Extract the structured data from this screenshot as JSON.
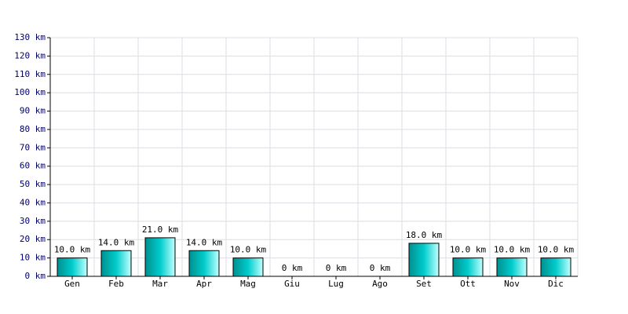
{
  "chart_data": {
    "type": "bar",
    "categories": [
      "Gen",
      "Feb",
      "Mar",
      "Apr",
      "Mag",
      "Giu",
      "Lug",
      "Ago",
      "Set",
      "Ott",
      "Nov",
      "Dic"
    ],
    "values": [
      10,
      14,
      21,
      14,
      10,
      0,
      0,
      0,
      18,
      10,
      10,
      10
    ],
    "value_labels": [
      "10.0 km",
      "14.0 km",
      "21.0 km",
      "14.0 km",
      "10.0 km",
      "0 km",
      "0 km",
      "0 km",
      "18.0 km",
      "10.0 km",
      "10.0 km",
      "10.0 km"
    ],
    "color": "#00cccc",
    "ylim": [
      0,
      130
    ],
    "yticks": [
      {
        "value": 0,
        "label": "0 km"
      },
      {
        "value": 10,
        "label": "10 km"
      },
      {
        "value": 20,
        "label": "20 km"
      },
      {
        "value": 30,
        "label": "30 km"
      },
      {
        "value": 40,
        "label": "40 km"
      },
      {
        "value": 50,
        "label": "50 km"
      },
      {
        "value": 60,
        "label": "60 km"
      },
      {
        "value": 70,
        "label": "70 km"
      },
      {
        "value": 80,
        "label": "80 km"
      },
      {
        "value": 90,
        "label": "90 km"
      },
      {
        "value": 100,
        "label": "100 km"
      },
      {
        "value": 110,
        "label": "110 km"
      },
      {
        "value": 120,
        "label": "120 km"
      },
      {
        "value": 130,
        "label": "130 km"
      }
    ],
    "grid": true
  }
}
